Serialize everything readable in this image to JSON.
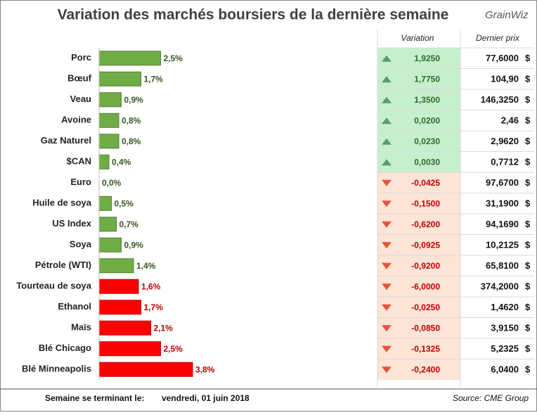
{
  "chart_data": {
    "type": "bar",
    "orientation": "horizontal",
    "title": "Variation des marchés boursiers de la dernière semaine",
    "categories": [
      "Porc",
      "Bœuf",
      "Veau",
      "Avoine",
      "Gaz Naturel",
      "$CAN",
      "Euro",
      "Huile de soya",
      "US Index",
      "Soya",
      "Pétrole (WTI)",
      "Tourteau de soya",
      "Ethanol",
      "Maïs",
      "Blé Chicago",
      "Blé Minneapolis"
    ],
    "values": [
      2.5,
      1.7,
      0.9,
      0.8,
      0.8,
      0.4,
      0.0,
      0.5,
      0.7,
      0.9,
      1.4,
      1.6,
      1.7,
      2.1,
      2.5,
      3.8
    ],
    "value_labels": [
      "2,5%",
      "1,7%",
      "0,9%",
      "0,8%",
      "0,8%",
      "0,4%",
      "0,0%",
      "0,5%",
      "0,7%",
      "0,9%",
      "1,4%",
      "1,6%",
      "1,7%",
      "2,1%",
      "2,5%",
      "3,8%"
    ],
    "colors": [
      "#70ad47",
      "#70ad47",
      "#70ad47",
      "#70ad47",
      "#70ad47",
      "#70ad47",
      "#70ad47",
      "#70ad47",
      "#70ad47",
      "#70ad47",
      "#70ad47",
      "#ff0000",
      "#ff0000",
      "#ff0000",
      "#ff0000",
      "#ff0000"
    ]
  },
  "logo": "GrainWiz",
  "table": {
    "headers": [
      "Variation",
      "Dernier prix"
    ],
    "currency": "$",
    "rows": [
      {
        "trend": "up",
        "variation": "1,9250",
        "price": "77,6000"
      },
      {
        "trend": "up",
        "variation": "1,7750",
        "price": "104,90"
      },
      {
        "trend": "up",
        "variation": "1,3500",
        "price": "146,3250"
      },
      {
        "trend": "up",
        "variation": "0,0200",
        "price": "2,46"
      },
      {
        "trend": "up",
        "variation": "0,0230",
        "price": "2,9620"
      },
      {
        "trend": "up",
        "variation": "0,0030",
        "price": "0,7712"
      },
      {
        "trend": "down",
        "variation": "-0,0425",
        "price": "97,6700"
      },
      {
        "trend": "down",
        "variation": "-0,1500",
        "price": "31,1900"
      },
      {
        "trend": "down",
        "variation": "-0,6200",
        "price": "94,1690"
      },
      {
        "trend": "down",
        "variation": "-0,0925",
        "price": "10,2125"
      },
      {
        "trend": "down",
        "variation": "-0,9200",
        "price": "65,8100"
      },
      {
        "trend": "down",
        "variation": "-6,0000",
        "price": "374,2000"
      },
      {
        "trend": "down",
        "variation": "-0,0250",
        "price": "1,4620"
      },
      {
        "trend": "down",
        "variation": "-0,0850",
        "price": "3,9150"
      },
      {
        "trend": "down",
        "variation": "-0,1325",
        "price": "5,2325"
      },
      {
        "trend": "down",
        "variation": "-0,2400",
        "price": "6,0400"
      }
    ]
  },
  "footer": {
    "week_label": "Semaine se terminant le:",
    "date": "vendredi, 01 juin 2018",
    "source": "Source: CME Group"
  }
}
